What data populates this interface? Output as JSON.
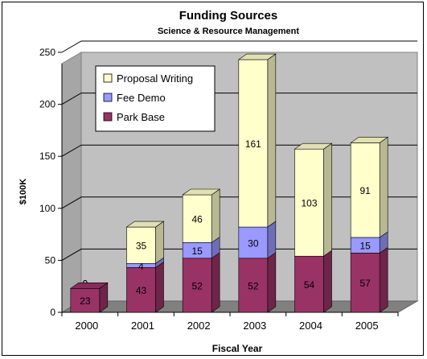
{
  "chart_data": {
    "type": "bar",
    "stacked": true,
    "three_d": true,
    "title": "Funding Sources",
    "subtitle": "Science & Resource Management",
    "xlabel": "Fiscal Year",
    "ylabel": "$100K",
    "ylim": [
      0,
      250
    ],
    "yticks": [
      "0",
      "50",
      "100",
      "150",
      "200",
      "250"
    ],
    "categories": [
      "2000",
      "2001",
      "2002",
      "2003",
      "2004",
      "2005"
    ],
    "grid": true,
    "legend_position": "top-left",
    "series": [
      {
        "name": "Park Base",
        "color": "#993366",
        "values": [
          23,
          43,
          52,
          52,
          54,
          57
        ],
        "labels": [
          "23",
          "43",
          "52",
          "52",
          "54",
          "57"
        ]
      },
      {
        "name": "Fee Demo",
        "color": "#9999ff",
        "values": [
          0,
          4,
          15,
          30,
          0,
          15
        ],
        "labels": [
          "0",
          "4",
          "15",
          "30",
          "0",
          "15"
        ]
      },
      {
        "name": "Proposal Writing",
        "color": "#ffffcc",
        "values": [
          0,
          35,
          46,
          161,
          103,
          91
        ],
        "labels": [
          "0",
          "35",
          "46",
          "161",
          "103",
          "91"
        ]
      }
    ],
    "legend_order": [
      2,
      1,
      0
    ]
  }
}
